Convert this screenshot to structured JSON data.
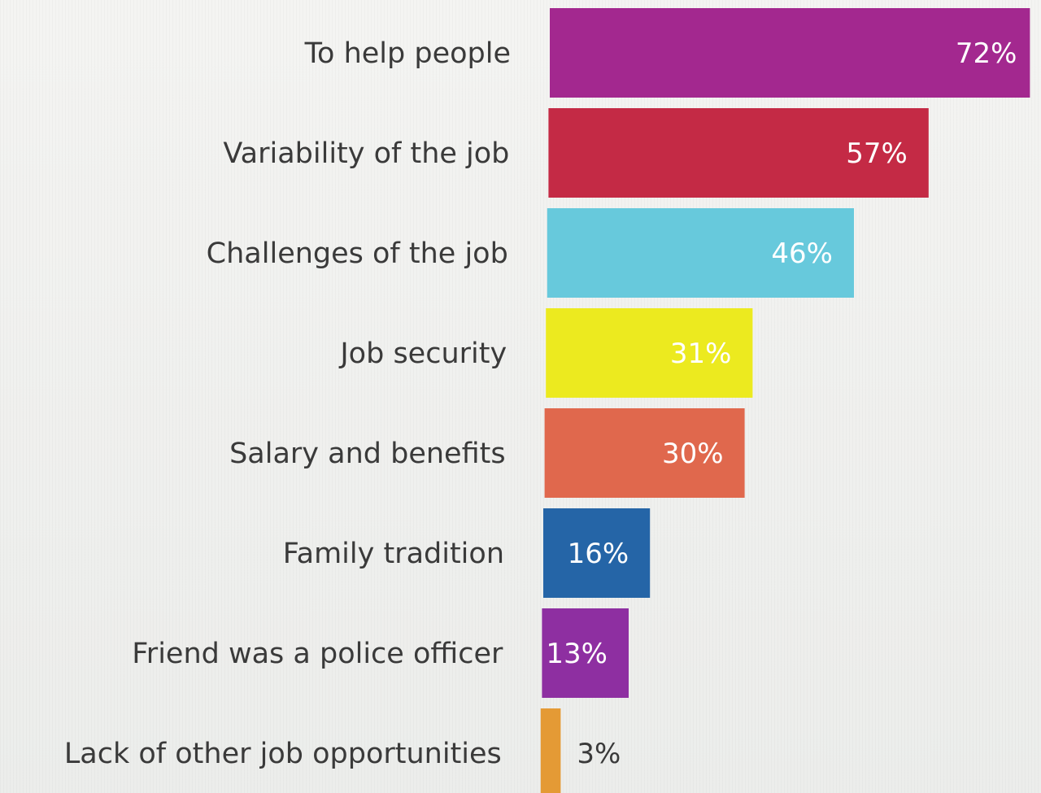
{
  "chart_data": {
    "type": "bar",
    "orientation": "horizontal",
    "title": "",
    "xlabel": "",
    "ylabel": "",
    "grid": false,
    "legend": "none",
    "unit": "%",
    "xlim": [
      0,
      72
    ],
    "categories": [
      "To help people",
      "Variability of the job",
      "Challenges of the job",
      "Job security",
      "Salary and benefits",
      "Family tradition",
      "Friend was a police officer",
      "Lack of other job opportunities"
    ],
    "values": [
      72,
      57,
      46,
      31,
      30,
      16,
      13,
      3
    ],
    "data_labels": [
      "72%",
      "57%",
      "46%",
      "31%",
      "30%",
      "16%",
      "13%",
      "3%"
    ],
    "colors": [
      "#a3288f",
      "#c42a45",
      "#67c9dc",
      "#ecea1f",
      "#e0684d",
      "#2565a7",
      "#8e2fa1",
      "#e49a35"
    ],
    "label_colors": [
      "#ffffff",
      "#ffffff",
      "#ffffff",
      "#ffffff",
      "#ffffff",
      "#ffffff",
      "#ffffff",
      "#3a3a3a"
    ]
  }
}
